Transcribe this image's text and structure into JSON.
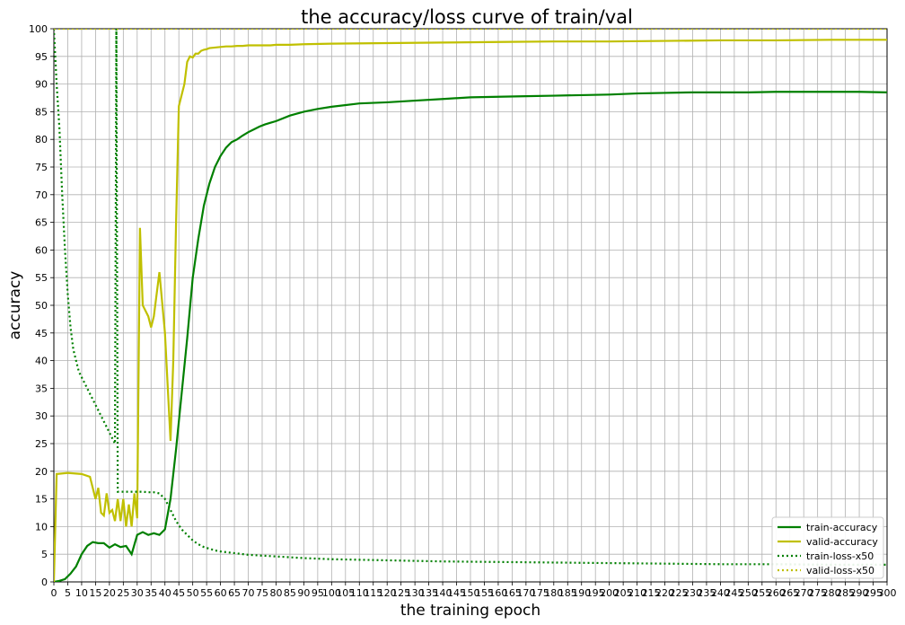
{
  "chart_data": {
    "type": "line",
    "title": "the accuracy/loss curve of train/val",
    "xlabel": "the training epoch",
    "ylabel": "accuracy",
    "xlim": [
      0,
      300
    ],
    "ylim": [
      0,
      100
    ],
    "grid": true,
    "legend_position": "bottom-right",
    "x_ticks": [
      0,
      5,
      10,
      15,
      20,
      25,
      30,
      35,
      40,
      45,
      50,
      55,
      60,
      65,
      70,
      75,
      80,
      85,
      90,
      95,
      100,
      105,
      110,
      115,
      120,
      125,
      130,
      135,
      140,
      145,
      150,
      155,
      160,
      165,
      170,
      175,
      180,
      185,
      190,
      195,
      200,
      205,
      210,
      215,
      220,
      225,
      230,
      235,
      240,
      245,
      250,
      255,
      260,
      265,
      270,
      275,
      280,
      285,
      290,
      295,
      300
    ],
    "y_ticks": [
      0,
      5,
      10,
      15,
      20,
      25,
      30,
      35,
      40,
      45,
      50,
      55,
      60,
      65,
      70,
      75,
      80,
      85,
      90,
      95,
      100
    ],
    "series": [
      {
        "name": "train-accuracy",
        "color": "#008000",
        "style": "solid",
        "x": [
          0,
          2,
          4,
          6,
          8,
          10,
          12,
          14,
          16,
          18,
          20,
          22,
          24,
          26,
          28,
          30,
          32,
          34,
          36,
          38,
          40,
          42,
          44,
          46,
          48,
          50,
          52,
          54,
          56,
          58,
          60,
          62,
          64,
          66,
          68,
          70,
          72,
          74,
          76,
          78,
          80,
          85,
          90,
          95,
          100,
          110,
          120,
          130,
          140,
          150,
          160,
          170,
          180,
          190,
          200,
          210,
          220,
          230,
          240,
          250,
          260,
          270,
          280,
          290,
          300
        ],
        "y": [
          0,
          0.2,
          0.5,
          1.5,
          2.8,
          5,
          6.5,
          7.2,
          7,
          7,
          6.2,
          6.8,
          6.3,
          6.5,
          5,
          8.5,
          9,
          8.5,
          8.8,
          8.5,
          9.5,
          15,
          24,
          34,
          44,
          55,
          62,
          68,
          72,
          75,
          77,
          78.5,
          79.5,
          80,
          80.7,
          81.3,
          81.8,
          82.3,
          82.7,
          83,
          83.3,
          84.3,
          85,
          85.5,
          85.9,
          86.5,
          86.7,
          87,
          87.3,
          87.6,
          87.7,
          87.8,
          87.9,
          88,
          88.1,
          88.3,
          88.4,
          88.5,
          88.5,
          88.5,
          88.6,
          88.6,
          88.6,
          88.6,
          88.5
        ]
      },
      {
        "name": "valid-accuracy",
        "color": "#c0c000",
        "style": "solid",
        "x": [
          0,
          1,
          5,
          10,
          13,
          15,
          16,
          17,
          18,
          19,
          20,
          21,
          22,
          23,
          24,
          25,
          26,
          27,
          28,
          29,
          30,
          31,
          32,
          33,
          34,
          35,
          36,
          38,
          40,
          42,
          43,
          44,
          45,
          46,
          47,
          48,
          49,
          50,
          51,
          52,
          53,
          54,
          55,
          56,
          58,
          60,
          62,
          64,
          66,
          68,
          70,
          72,
          74,
          76,
          78,
          80,
          85,
          90,
          100,
          120,
          140,
          160,
          180,
          200,
          220,
          240,
          260,
          280,
          300
        ],
        "y": [
          0,
          19.5,
          19.7,
          19.5,
          19,
          15,
          17,
          12.5,
          12,
          16,
          12.5,
          13,
          11,
          15,
          11,
          15,
          10,
          14,
          10,
          16,
          11.5,
          64,
          50,
          49,
          48,
          46,
          48,
          56,
          45,
          25.5,
          40,
          65,
          86,
          88,
          90,
          94,
          95,
          94.8,
          95.5,
          95.5,
          96,
          96.2,
          96.3,
          96.5,
          96.6,
          96.7,
          96.8,
          96.8,
          96.9,
          96.9,
          97,
          97,
          97,
          97,
          97,
          97.1,
          97.1,
          97.2,
          97.3,
          97.4,
          97.5,
          97.6,
          97.7,
          97.7,
          97.8,
          97.9,
          97.9,
          98,
          98
        ]
      },
      {
        "name": "train-loss-x50",
        "color": "#008000",
        "style": "dotted",
        "x": [
          0,
          0.5,
          1,
          2,
          3,
          4,
          5,
          6,
          7,
          8,
          9,
          10,
          11,
          12,
          13,
          14,
          15,
          16,
          17,
          18,
          19,
          20,
          21,
          22,
          22.5,
          23,
          24,
          26,
          28,
          30,
          32,
          34,
          36,
          38,
          40,
          42,
          44,
          46,
          48,
          50,
          52,
          54,
          56,
          58,
          60,
          65,
          70,
          80,
          90,
          100,
          120,
          140,
          160,
          180,
          200,
          220,
          240,
          260,
          280,
          300
        ],
        "y": [
          100,
          95,
          90,
          82,
          70,
          60,
          52,
          46,
          42,
          40,
          38,
          37,
          36,
          35,
          34,
          33,
          32,
          31,
          30,
          29,
          28,
          27,
          26,
          25,
          100,
          16.3,
          16.3,
          16.3,
          16.3,
          16.3,
          16.3,
          16.2,
          16.2,
          16,
          15,
          13,
          11,
          9.5,
          8.5,
          7.5,
          6.8,
          6.3,
          6,
          5.7,
          5.5,
          5.2,
          4.9,
          4.6,
          4.3,
          4.1,
          3.9,
          3.7,
          3.6,
          3.5,
          3.4,
          3.3,
          3.2,
          3.2,
          3.1,
          3.1
        ]
      },
      {
        "name": "valid-loss-x50",
        "color": "#c0c000",
        "style": "dotted",
        "x": [
          0,
          30,
          31,
          32,
          33,
          34,
          35,
          36,
          38,
          40,
          42,
          44,
          46,
          48,
          50,
          52,
          54,
          56,
          58,
          60,
          62,
          64,
          66,
          68,
          70,
          75,
          80,
          90,
          100,
          120,
          140,
          160,
          180,
          200,
          220,
          240,
          260,
          280,
          300
        ],
        "y": [
          100,
          100,
          100,
          100,
          100,
          100,
          100,
          100,
          100,
          100,
          100,
          100,
          100,
          100,
          100,
          100,
          100,
          100,
          100,
          100,
          100,
          100,
          100,
          100,
          100,
          100,
          100,
          100,
          100,
          100,
          100,
          100,
          100,
          100,
          100,
          100,
          100,
          100,
          100
        ]
      }
    ]
  }
}
